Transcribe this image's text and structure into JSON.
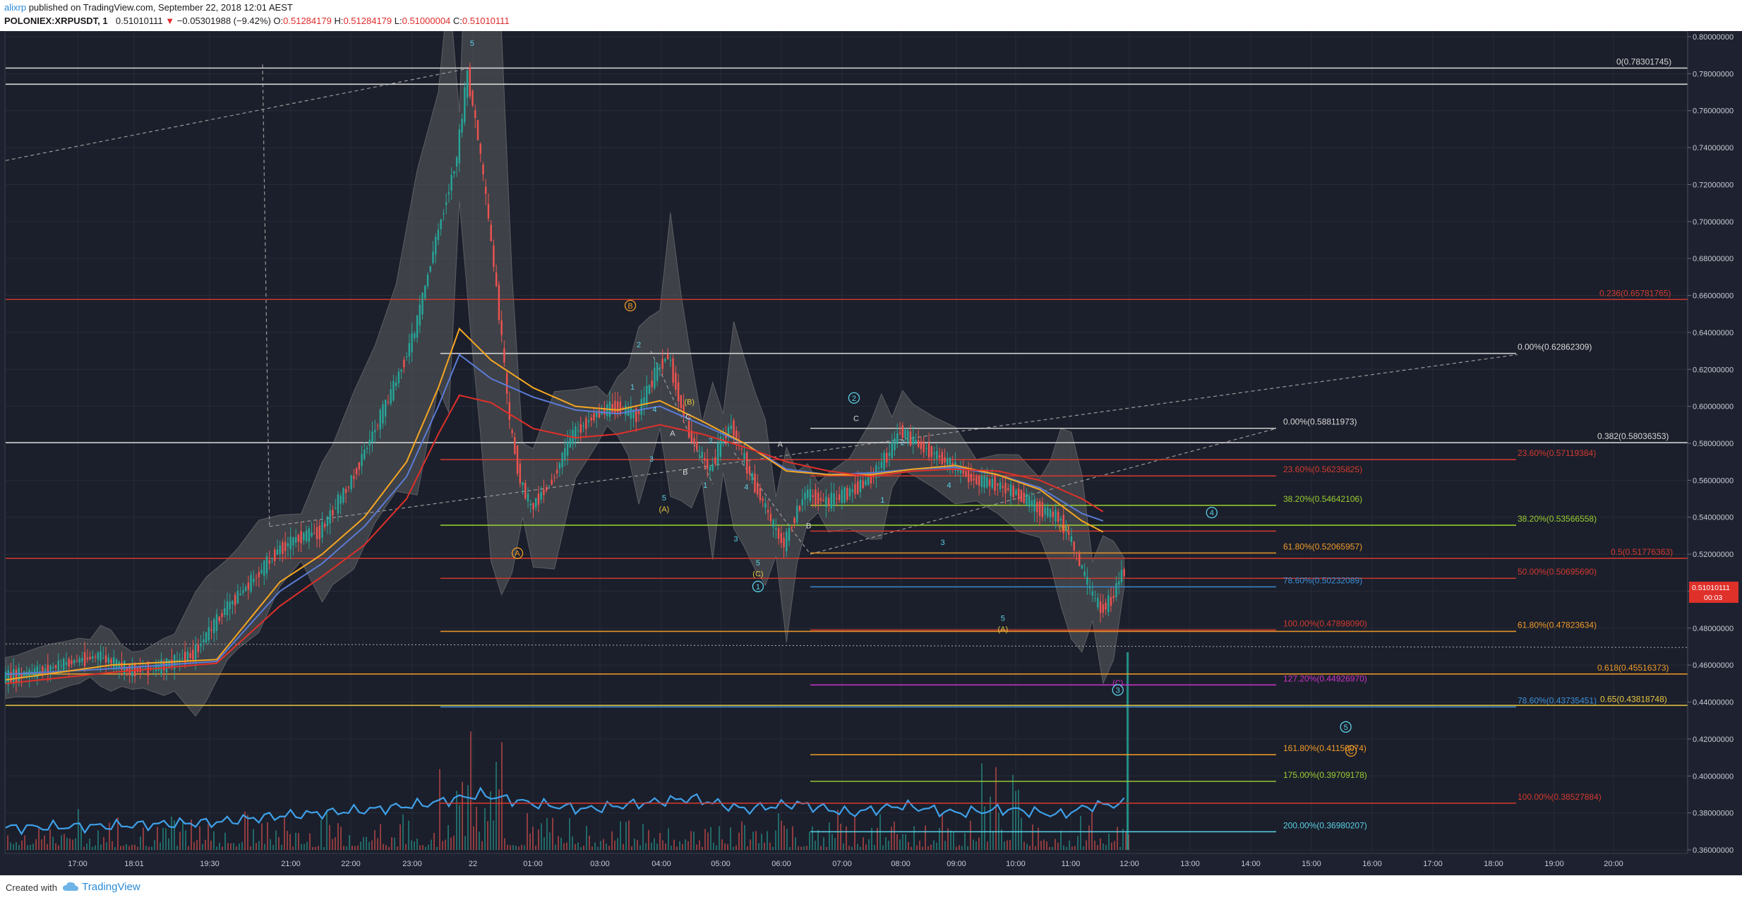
{
  "header": {
    "author": "alixrp",
    "published": " published on TradingView.com, September 22, 2018 12:01 AEST",
    "symbol": "POLONIEX:XRPUSDT, 1",
    "last": "0.51010111",
    "arrow": "▼",
    "change": "−0.05301988 (−9.42%)",
    "o_label": "O:",
    "o": "0.51284179",
    "h_label": "H:",
    "h": "0.51284179",
    "l_label": "L:",
    "l": "0.51000004",
    "c_label": "C:",
    "c": "0.51010111"
  },
  "footer": {
    "created": "Created with",
    "brand": "TradingView"
  },
  "price_badge": {
    "value": "0.51010111",
    "countdown": "00:03"
  },
  "colors": {
    "bg": "#1e2230",
    "up": "#26a69a",
    "down": "#ef5350",
    "cloud": "#6b6b6b",
    "ema_orange": "#f5a623",
    "ema_blue": "#5b7bd6",
    "ema_red": "#e0302a",
    "white_line": "#d8d8d8",
    "red_line": "#d33a2f",
    "orange_line": "#f09a28",
    "green_line": "#9acd32",
    "blue_line": "#3c8fd6",
    "magenta_line": "#cc33cc",
    "yellow_line": "#e8c840",
    "cyan": "#5ad0e6"
  },
  "chart_data": {
    "type": "candlestick",
    "ylim": [
      0.36,
      0.8
    ],
    "y_ticks": [
      "0.80000000",
      "0.78000000",
      "0.76000000",
      "0.74000000",
      "0.72000000",
      "0.70000000",
      "0.68000000",
      "0.66000000",
      "0.64000000",
      "0.62000000",
      "0.60000000",
      "0.58000000",
      "0.56000000",
      "0.54000000",
      "0.52000000",
      "0.50000000",
      "0.48000000",
      "0.46000000",
      "0.44000000",
      "0.42000000",
      "0.40000000",
      "0.38000000",
      "0.36000000"
    ],
    "x_ticks": [
      "17:00",
      "18:01",
      "19:30",
      "21:00",
      "22:00",
      "23:00",
      "22",
      "01:00",
      "03:00",
      "04:00",
      "05:00",
      "06:00",
      "07:00",
      "08:00",
      "09:00",
      "10:00",
      "11:00",
      "12:00",
      "13:00",
      "14:00",
      "15:00",
      "16:00",
      "17:00",
      "18:00",
      "19:00",
      "20:00"
    ],
    "price_path": [
      [
        0,
        0.453
      ],
      [
        3,
        0.456
      ],
      [
        6,
        0.461
      ],
      [
        9,
        0.465
      ],
      [
        12,
        0.457
      ],
      [
        15,
        0.459
      ],
      [
        18,
        0.466
      ],
      [
        21,
        0.49
      ],
      [
        24,
        0.508
      ],
      [
        26,
        0.522
      ],
      [
        28,
        0.529
      ],
      [
        30,
        0.532
      ],
      [
        33,
        0.56
      ],
      [
        35,
        0.585
      ],
      [
        37,
        0.61
      ],
      [
        39,
        0.64
      ],
      [
        41,
        0.69
      ],
      [
        43,
        0.735
      ],
      [
        44,
        0.78
      ],
      [
        45,
        0.745
      ],
      [
        46,
        0.7
      ],
      [
        47,
        0.65
      ],
      [
        48,
        0.59
      ],
      [
        49,
        0.56
      ],
      [
        50,
        0.545
      ],
      [
        52,
        0.56
      ],
      [
        54,
        0.585
      ],
      [
        56,
        0.595
      ],
      [
        58,
        0.6
      ],
      [
        60,
        0.595
      ],
      [
        62,
        0.62
      ],
      [
        63,
        0.628
      ],
      [
        64,
        0.605
      ],
      [
        65,
        0.585
      ],
      [
        66,
        0.575
      ],
      [
        67,
        0.565
      ],
      [
        68,
        0.58
      ],
      [
        69,
        0.59
      ],
      [
        70,
        0.575
      ],
      [
        71,
        0.56
      ],
      [
        72,
        0.548
      ],
      [
        73,
        0.535
      ],
      [
        74,
        0.525
      ],
      [
        75,
        0.54
      ],
      [
        76,
        0.553
      ],
      [
        78,
        0.548
      ],
      [
        80,
        0.553
      ],
      [
        82,
        0.56
      ],
      [
        84,
        0.575
      ],
      [
        85,
        0.587
      ],
      [
        86,
        0.582
      ],
      [
        88,
        0.575
      ],
      [
        90,
        0.568
      ],
      [
        92,
        0.56
      ],
      [
        94,
        0.558
      ],
      [
        96,
        0.553
      ],
      [
        98,
        0.545
      ],
      [
        100,
        0.54
      ],
      [
        101,
        0.53
      ],
      [
        102,
        0.515
      ],
      [
        103,
        0.5
      ],
      [
        104,
        0.49
      ],
      [
        105,
        0.495
      ],
      [
        106,
        0.51
      ]
    ],
    "volume_path": [
      [
        0,
        0.372
      ],
      [
        10,
        0.373
      ],
      [
        20,
        0.375
      ],
      [
        25,
        0.378
      ],
      [
        30,
        0.38
      ],
      [
        35,
        0.382
      ],
      [
        40,
        0.385
      ],
      [
        45,
        0.39
      ],
      [
        50,
        0.385
      ],
      [
        55,
        0.382
      ],
      [
        60,
        0.385
      ],
      [
        65,
        0.388
      ],
      [
        70,
        0.382
      ],
      [
        75,
        0.385
      ],
      [
        80,
        0.38
      ],
      [
        85,
        0.384
      ],
      [
        90,
        0.38
      ],
      [
        95,
        0.382
      ],
      [
        100,
        0.379
      ],
      [
        103,
        0.384
      ],
      [
        106,
        0.385
      ]
    ],
    "ema_orange": [
      [
        0,
        0.452
      ],
      [
        10,
        0.46
      ],
      [
        20,
        0.463
      ],
      [
        26,
        0.505
      ],
      [
        30,
        0.52
      ],
      [
        34,
        0.54
      ],
      [
        38,
        0.57
      ],
      [
        41,
        0.61
      ],
      [
        43,
        0.642
      ],
      [
        46,
        0.625
      ],
      [
        50,
        0.61
      ],
      [
        54,
        0.6
      ],
      [
        58,
        0.598
      ],
      [
        62,
        0.603
      ],
      [
        66,
        0.592
      ],
      [
        70,
        0.58
      ],
      [
        74,
        0.565
      ],
      [
        78,
        0.563
      ],
      [
        82,
        0.563
      ],
      [
        86,
        0.566
      ],
      [
        90,
        0.568
      ],
      [
        94,
        0.563
      ],
      [
        98,
        0.555
      ],
      [
        102,
        0.538
      ],
      [
        104,
        0.532
      ]
    ],
    "ema_blue": [
      [
        0,
        0.455
      ],
      [
        10,
        0.458
      ],
      [
        20,
        0.462
      ],
      [
        26,
        0.5
      ],
      [
        30,
        0.515
      ],
      [
        34,
        0.535
      ],
      [
        38,
        0.562
      ],
      [
        41,
        0.6
      ],
      [
        43,
        0.628
      ],
      [
        46,
        0.615
      ],
      [
        50,
        0.605
      ],
      [
        54,
        0.598
      ],
      [
        58,
        0.596
      ],
      [
        62,
        0.6
      ],
      [
        66,
        0.59
      ],
      [
        70,
        0.58
      ],
      [
        74,
        0.566
      ],
      [
        78,
        0.563
      ],
      [
        82,
        0.564
      ],
      [
        86,
        0.566
      ],
      [
        90,
        0.567
      ],
      [
        94,
        0.563
      ],
      [
        98,
        0.556
      ],
      [
        102,
        0.542
      ],
      [
        104,
        0.538
      ]
    ],
    "ema_red": [
      [
        0,
        0.45
      ],
      [
        10,
        0.456
      ],
      [
        20,
        0.461
      ],
      [
        26,
        0.492
      ],
      [
        30,
        0.508
      ],
      [
        34,
        0.525
      ],
      [
        38,
        0.55
      ],
      [
        41,
        0.585
      ],
      [
        43,
        0.606
      ],
      [
        46,
        0.602
      ],
      [
        50,
        0.588
      ],
      [
        54,
        0.583
      ],
      [
        58,
        0.585
      ],
      [
        62,
        0.59
      ],
      [
        66,
        0.585
      ],
      [
        70,
        0.578
      ],
      [
        74,
        0.57
      ],
      [
        78,
        0.565
      ],
      [
        82,
        0.562
      ],
      [
        86,
        0.565
      ],
      [
        90,
        0.566
      ],
      [
        94,
        0.565
      ],
      [
        98,
        0.56
      ],
      [
        102,
        0.55
      ],
      [
        104,
        0.543
      ]
    ],
    "fib_levels": [
      {
        "label": "0(0.78301745)",
        "value": 0.78301745,
        "color": "white_line"
      },
      {
        "label": "0.236(0.65781765)",
        "value": 0.65781765,
        "color": "red_line"
      },
      {
        "label": "0.00%(0.62862309)",
        "value": 0.62862309,
        "color": "white_line"
      },
      {
        "label": "0.00%(0.58811973)",
        "value": 0.58811973,
        "color": "white_line"
      },
      {
        "label": "0.382(0.58036353)",
        "value": 0.58036353,
        "color": "white_line"
      },
      {
        "label": "23.60%(0.57119384)",
        "value": 0.57119384,
        "color": "red_line"
      },
      {
        "label": "23.60%(0.56235825)",
        "value": 0.56235825,
        "color": "red_line"
      },
      {
        "label": "38.20%(0.54642106)",
        "value": 0.54642106,
        "color": "green_line"
      },
      {
        "label": "38.20%(0.53566558)",
        "value": 0.53566558,
        "color": "green_line"
      },
      {
        "label": "61.80%(0.52065957)",
        "value": 0.52065957,
        "color": "orange_line"
      },
      {
        "label": "0.5(0.51776363)",
        "value": 0.51776363,
        "color": "red_line"
      },
      {
        "label": "50.00%(0.50695690)",
        "value": 0.5069569,
        "color": "red_line"
      },
      {
        "label": "78.60%(0.50232089)",
        "value": 0.50232089,
        "color": "blue_line"
      },
      {
        "label": "100.00%(0.47898090)",
        "value": 0.4789809,
        "color": "red_line"
      },
      {
        "label": "61.80%(0.47823634)",
        "value": 0.47823634,
        "color": "orange_line"
      },
      {
        "label": "0.618(0.45516373)",
        "value": 0.45516373,
        "color": "orange_line"
      },
      {
        "label": "127.20%(0.44926970)",
        "value": 0.4492697,
        "color": "magenta_line"
      },
      {
        "label": "78.60%(0.43735451)",
        "value": 0.43735451,
        "color": "blue_line"
      },
      {
        "label": "0.65(0.43818748)",
        "value": 0.43818748,
        "color": "yellow_line"
      },
      {
        "label": "161.80%(0.41150074)",
        "value": 0.41150074,
        "color": "orange_line"
      },
      {
        "label": "175.00%(0.39709178)",
        "value": 0.39709178,
        "color": "green_line"
      },
      {
        "label": "100.00%(0.38527884)",
        "value": 0.38527884,
        "color": "red_line"
      },
      {
        "label": "200.00%(0.36980207)",
        "value": 0.36980207,
        "color": "cyan"
      }
    ],
    "wave_labels": [
      {
        "text": "5",
        "x": 44.2,
        "y": 0.795,
        "color": "cyan"
      },
      {
        "text": "B",
        "x": 59.2,
        "y": 0.653,
        "color": "orange_line",
        "circle": true
      },
      {
        "text": "A",
        "x": 48.5,
        "y": 0.519,
        "color": "orange_line",
        "circle": true
      },
      {
        "text": "2",
        "x": 60.0,
        "y": 0.632,
        "color": "cyan"
      },
      {
        "text": "1",
        "x": 59.4,
        "y": 0.609,
        "color": "cyan"
      },
      {
        "text": "4",
        "x": 61.5,
        "y": 0.597,
        "color": "cyan"
      },
      {
        "text": "(B)",
        "x": 64.8,
        "y": 0.601,
        "color": "yellow_line"
      },
      {
        "text": "C",
        "x": 64.7,
        "y": 0.593,
        "color": "white_line"
      },
      {
        "text": "A",
        "x": 63.2,
        "y": 0.584,
        "color": "white_line"
      },
      {
        "text": "3",
        "x": 61.2,
        "y": 0.57,
        "color": "cyan"
      },
      {
        "text": "B",
        "x": 64.4,
        "y": 0.563,
        "color": "white_line"
      },
      {
        "text": "2",
        "x": 66.8,
        "y": 0.58,
        "color": "cyan"
      },
      {
        "text": "5",
        "x": 62.4,
        "y": 0.549,
        "color": "cyan"
      },
      {
        "text": "(A)",
        "x": 62.4,
        "y": 0.543,
        "color": "yellow_line"
      },
      {
        "text": "1",
        "x": 66.3,
        "y": 0.556,
        "color": "cyan"
      },
      {
        "text": "4",
        "x": 70.2,
        "y": 0.555,
        "color": "cyan"
      },
      {
        "text": "3",
        "x": 69.2,
        "y": 0.527,
        "color": "cyan"
      },
      {
        "text": "5",
        "x": 71.3,
        "y": 0.514,
        "color": "cyan"
      },
      {
        "text": "(C)",
        "x": 71.3,
        "y": 0.508,
        "color": "yellow_line"
      },
      {
        "text": "1",
        "x": 71.3,
        "y": 0.501,
        "color": "cyan",
        "circle": true
      },
      {
        "text": "A",
        "x": 73.4,
        "y": 0.578,
        "color": "white_line"
      },
      {
        "text": "B",
        "x": 76.1,
        "y": 0.534,
        "color": "white_line"
      },
      {
        "text": "2",
        "x": 80.4,
        "y": 0.603,
        "color": "cyan",
        "circle": true
      },
      {
        "text": "C",
        "x": 80.6,
        "y": 0.592,
        "color": "white_line"
      },
      {
        "text": "2",
        "x": 85.0,
        "y": 0.579,
        "color": "cyan"
      },
      {
        "text": "1",
        "x": 83.1,
        "y": 0.548,
        "color": "cyan"
      },
      {
        "text": "4",
        "x": 89.4,
        "y": 0.556,
        "color": "cyan"
      },
      {
        "text": "3",
        "x": 88.8,
        "y": 0.525,
        "color": "cyan"
      },
      {
        "text": "4",
        "x": 114.3,
        "y": 0.541,
        "color": "cyan",
        "circle": true
      },
      {
        "text": "(B)",
        "x": 100.3,
        "y": 0.533,
        "color": "orange_line"
      },
      {
        "text": "5",
        "x": 94.5,
        "y": 0.484,
        "color": "cyan"
      },
      {
        "text": "(A)",
        "x": 94.5,
        "y": 0.478,
        "color": "yellow_line"
      },
      {
        "text": "(C)",
        "x": 105.4,
        "y": 0.449,
        "color": "magenta_line"
      },
      {
        "text": "3",
        "x": 105.4,
        "y": 0.445,
        "color": "cyan",
        "circle": true
      },
      {
        "text": "5",
        "x": 127.0,
        "y": 0.425,
        "color": "cyan",
        "circle": true
      },
      {
        "text": "C",
        "x": 127.5,
        "y": 0.412,
        "color": "orange_line",
        "circle": true
      }
    ]
  }
}
